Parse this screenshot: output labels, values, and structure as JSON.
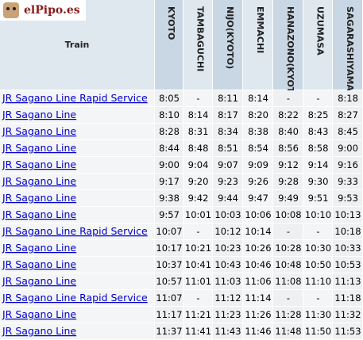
{
  "logo": "elPipo.es",
  "header": {
    "train": "Train",
    "stations": [
      "KYOTO",
      "TAMBAGUCHI",
      "NIJO(KYOTO)",
      "EMMACHI",
      "HANAZONO(KYOTO)",
      "UZUMASA",
      "SAGARASHIYAMA"
    ]
  },
  "rows": [
    {
      "train": "JR Sagano Line Rapid Service",
      "times": [
        "8:05",
        "-",
        "8:11",
        "8:14",
        "-",
        "-",
        "8:18"
      ]
    },
    {
      "train": "JR Sagano Line",
      "times": [
        "8:10",
        "8:14",
        "8:17",
        "8:20",
        "8:22",
        "8:25",
        "8:27"
      ]
    },
    {
      "train": "JR Sagano Line",
      "times": [
        "8:28",
        "8:31",
        "8:34",
        "8:38",
        "8:40",
        "8:43",
        "8:45"
      ]
    },
    {
      "train": "JR Sagano Line",
      "times": [
        "8:44",
        "8:48",
        "8:51",
        "8:54",
        "8:56",
        "8:58",
        "9:00"
      ]
    },
    {
      "train": "JR Sagano Line",
      "times": [
        "9:00",
        "9:04",
        "9:07",
        "9:09",
        "9:12",
        "9:14",
        "9:16"
      ]
    },
    {
      "train": "JR Sagano Line",
      "times": [
        "9:17",
        "9:20",
        "9:23",
        "9:26",
        "9:28",
        "9:30",
        "9:33"
      ]
    },
    {
      "train": "JR Sagano Line",
      "times": [
        "9:38",
        "9:42",
        "9:44",
        "9:47",
        "9:49",
        "9:51",
        "9:53"
      ]
    },
    {
      "train": "JR Sagano Line",
      "times": [
        "9:57",
        "10:01",
        "10:03",
        "10:06",
        "10:08",
        "10:10",
        "10:13"
      ]
    },
    {
      "train": "JR Sagano Line Rapid Service",
      "times": [
        "10:07",
        "-",
        "10:12",
        "10:14",
        "-",
        "-",
        "10:18"
      ]
    },
    {
      "train": "JR Sagano Line",
      "times": [
        "10:17",
        "10:21",
        "10:23",
        "10:26",
        "10:28",
        "10:30",
        "10:33"
      ]
    },
    {
      "train": "JR Sagano Line",
      "times": [
        "10:37",
        "10:41",
        "10:43",
        "10:46",
        "10:48",
        "10:50",
        "10:53"
      ]
    },
    {
      "train": "JR Sagano Line",
      "times": [
        "10:57",
        "11:01",
        "11:03",
        "11:06",
        "11:08",
        "11:10",
        "11:13"
      ]
    },
    {
      "train": "JR Sagano Line Rapid Service",
      "times": [
        "11:07",
        "-",
        "11:12",
        "11:14",
        "-",
        "-",
        "11:18"
      ]
    },
    {
      "train": "JR Sagano Line",
      "times": [
        "11:17",
        "11:21",
        "11:23",
        "11:26",
        "11:28",
        "11:30",
        "11:32"
      ]
    },
    {
      "train": "JR Sagano Line",
      "times": [
        "11:37",
        "11:41",
        "11:43",
        "11:46",
        "11:48",
        "11:50",
        "11:53"
      ]
    }
  ]
}
